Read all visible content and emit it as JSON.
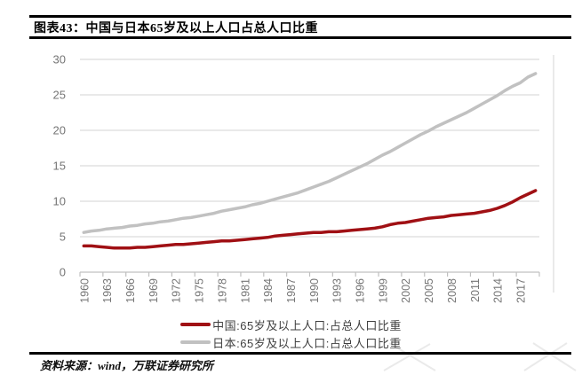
{
  "header": {
    "title": "图表43：中国与日本65岁及以上人口占总人口比重"
  },
  "source_note": "资料来源：wind，万联证券研究所",
  "colors": {
    "china_line": "#A01014",
    "japan_line": "#C1C1C1",
    "grid": "#DCDCDC",
    "axis": "#C0C0C0",
    "tick_label": "#757575",
    "legend_text": "#3F3F3F",
    "rule": "#000000",
    "watermark": "#E2E2E2"
  },
  "chart_data": {
    "type": "line",
    "title": "图表43：中国与日本65岁及以上人口占总人口比重",
    "xlabel": "",
    "ylabel": "",
    "ylim": [
      0,
      30
    ],
    "yticks": [
      0,
      5,
      10,
      15,
      20,
      25,
      30
    ],
    "grid": "horizontal",
    "legend_position": "bottom",
    "xtick_every": 3,
    "xtick_labels": [
      "1960",
      "1963",
      "1966",
      "1969",
      "1972",
      "1975",
      "1978",
      "1981",
      "1984",
      "1987",
      "1990",
      "1993",
      "1996",
      "1999",
      "2002",
      "2005",
      "2008",
      "2011",
      "2014",
      "2017"
    ],
    "x": [
      1960,
      1961,
      1962,
      1963,
      1964,
      1965,
      1966,
      1967,
      1968,
      1969,
      1970,
      1971,
      1972,
      1973,
      1974,
      1975,
      1976,
      1977,
      1978,
      1979,
      1980,
      1981,
      1982,
      1983,
      1984,
      1985,
      1986,
      1987,
      1988,
      1989,
      1990,
      1991,
      1992,
      1993,
      1994,
      1995,
      1996,
      1997,
      1998,
      1999,
      2000,
      2001,
      2002,
      2003,
      2004,
      2005,
      2006,
      2007,
      2008,
      2009,
      2010,
      2011,
      2012,
      2013,
      2014,
      2015,
      2016,
      2017,
      2018,
      2019
    ],
    "series": [
      {
        "name": "中国:65岁及以上人口:占总人口比重",
        "color": "#A01014",
        "values": [
          3.7,
          3.7,
          3.6,
          3.5,
          3.4,
          3.4,
          3.4,
          3.5,
          3.5,
          3.6,
          3.7,
          3.8,
          3.9,
          3.9,
          4.0,
          4.1,
          4.2,
          4.3,
          4.4,
          4.4,
          4.5,
          4.6,
          4.7,
          4.8,
          4.9,
          5.1,
          5.2,
          5.3,
          5.4,
          5.5,
          5.6,
          5.6,
          5.7,
          5.7,
          5.8,
          5.9,
          6.0,
          6.1,
          6.2,
          6.4,
          6.7,
          6.9,
          7.0,
          7.2,
          7.4,
          7.6,
          7.7,
          7.8,
          8.0,
          8.1,
          8.2,
          8.3,
          8.5,
          8.7,
          9.0,
          9.4,
          9.9,
          10.5,
          11.0,
          11.5
        ]
      },
      {
        "name": "日本:65岁及以上人口:占总人口比重",
        "color": "#C1C1C1",
        "values": [
          5.6,
          5.8,
          5.9,
          6.1,
          6.2,
          6.3,
          6.5,
          6.6,
          6.8,
          6.9,
          7.1,
          7.2,
          7.4,
          7.6,
          7.7,
          7.9,
          8.1,
          8.3,
          8.6,
          8.8,
          9.0,
          9.2,
          9.5,
          9.7,
          10.0,
          10.3,
          10.6,
          10.9,
          11.2,
          11.6,
          12.0,
          12.4,
          12.8,
          13.3,
          13.8,
          14.3,
          14.8,
          15.3,
          15.9,
          16.5,
          17.0,
          17.6,
          18.2,
          18.8,
          19.4,
          19.9,
          20.5,
          21.0,
          21.5,
          22.0,
          22.5,
          23.1,
          23.7,
          24.3,
          24.9,
          25.6,
          26.2,
          26.7,
          27.5,
          28.0
        ]
      }
    ]
  }
}
